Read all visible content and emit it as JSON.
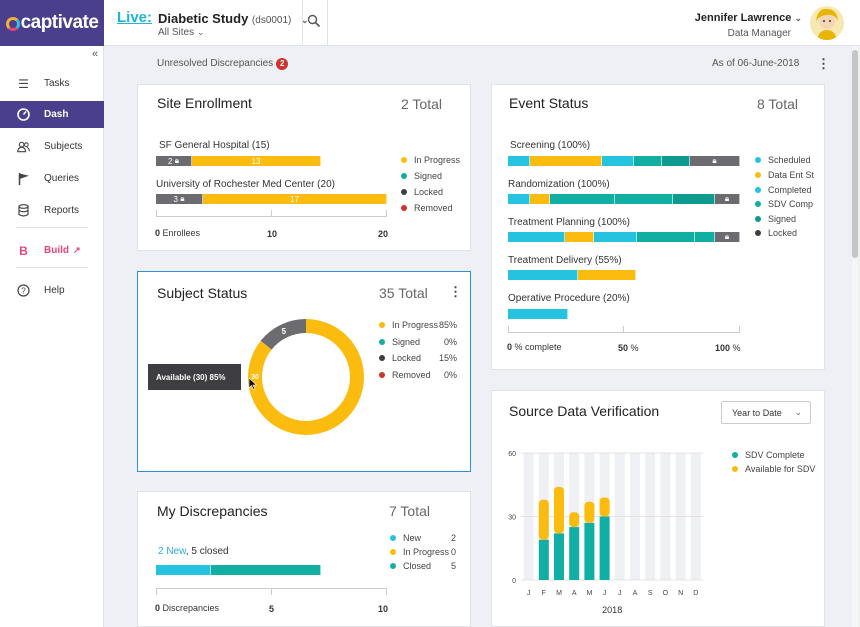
{
  "brand": {
    "name": "captivate"
  },
  "header": {
    "live_label": "Live:",
    "study_name": "Diabetic Study",
    "study_code": "(ds0001)",
    "sites": "All Sites",
    "user_name": "Jennifer Lawrence",
    "user_role": "Data Manager"
  },
  "sidebar": {
    "items": [
      {
        "label": "Tasks",
        "icon": "list-icon"
      },
      {
        "label": "Dash",
        "icon": "dashboard-icon"
      },
      {
        "label": "Subjects",
        "icon": "people-icon"
      },
      {
        "label": "Queries",
        "icon": "flag-icon"
      },
      {
        "label": "Reports",
        "icon": "database-icon"
      },
      {
        "label": "Build",
        "icon": "build-icon"
      },
      {
        "label": "Help",
        "icon": "help-icon"
      }
    ]
  },
  "subheader": {
    "unresolved_label": "Unresolved Discrepancies",
    "unresolved_count": "2",
    "as_of": "As of 06-June-2018"
  },
  "site_enrollment": {
    "title": "Site Enrollment",
    "total": "2 Total",
    "rows": [
      {
        "label": "SF General Hospital (15)",
        "locked": "2",
        "in_progress": "13"
      },
      {
        "label": "University of Rochester Med Center (20)",
        "locked": "3",
        "in_progress": "17"
      }
    ],
    "legend": [
      "In Progress",
      "Signed",
      "Locked",
      "Removed"
    ],
    "axis": {
      "min": "0",
      "min_unit": "Enrollees",
      "mid": "10",
      "max": "20"
    }
  },
  "event_status": {
    "title": "Event Status",
    "total": "8 Total",
    "rows": [
      {
        "label": "Screening (100%)"
      },
      {
        "label": "Randomization (100%)"
      },
      {
        "label": "Treatment Planning (100%)"
      },
      {
        "label": "Treatment Delivery (55%)"
      },
      {
        "label": "Operative Procedure (20%)"
      }
    ],
    "legend": [
      "Scheduled",
      "Data Ent St",
      "Completed",
      "SDV Comp",
      "Signed",
      "Locked"
    ],
    "axis": {
      "min": "0",
      "min_unit": "% complete",
      "mid": "50",
      "mid_unit": "%",
      "max": "100",
      "max_unit": "%"
    }
  },
  "subject_status": {
    "title": "Subject Status",
    "total": "35 Total",
    "donut": {
      "locked": 5,
      "in_progress": 30,
      "locked_label": "5",
      "in_progress_label": "30"
    },
    "legend": [
      {
        "label": "In Progress",
        "pct": "85%"
      },
      {
        "label": "Signed",
        "pct": "0%"
      },
      {
        "label": "Locked",
        "pct": "15%"
      },
      {
        "label": "Removed",
        "pct": "0%"
      }
    ],
    "tooltip": "Available (30)  85%"
  },
  "discrepancies": {
    "title": "My Discrepancies",
    "total": "7 Total",
    "new_text": "2 New",
    "closed_text": ", 5 closed",
    "legend": [
      {
        "label": "New",
        "count": "2"
      },
      {
        "label": "In Progress",
        "count": "0"
      },
      {
        "label": "Closed",
        "count": "5"
      }
    ],
    "axis": {
      "min": "0",
      "min_unit": "Discrepancies",
      "mid": "5",
      "max": "10"
    }
  },
  "sdv": {
    "title": "Source Data Verification",
    "dropdown": "Year to Date",
    "legend": [
      "SDV Complete",
      "Available for SDV"
    ],
    "year": "2018"
  },
  "chart_data": {
    "type": "bar",
    "title": "Source Data Verification",
    "categories": [
      "J",
      "F",
      "M",
      "A",
      "M",
      "J",
      "J",
      "A",
      "S",
      "O",
      "N",
      "D"
    ],
    "series": [
      {
        "name": "SDV Complete",
        "values": [
          0,
          19,
          22,
          25,
          27,
          30,
          0,
          0,
          0,
          0,
          0,
          0
        ]
      },
      {
        "name": "Available for SDV",
        "values": [
          0,
          19,
          22,
          7,
          10,
          9,
          0,
          0,
          0,
          0,
          0,
          0
        ]
      }
    ],
    "ylim": [
      0,
      60
    ],
    "yticks": [
      "0",
      "30",
      "60"
    ],
    "xlabel": "2018",
    "ylabel": "",
    "stacked": true,
    "grid": true,
    "legend": "top-right"
  },
  "colors": {
    "yellow": "#fbbb0f",
    "teal": "#11aea4",
    "cyan": "#25c3e0",
    "gray": "#6c6c70",
    "purple": "#4a3f8c"
  }
}
